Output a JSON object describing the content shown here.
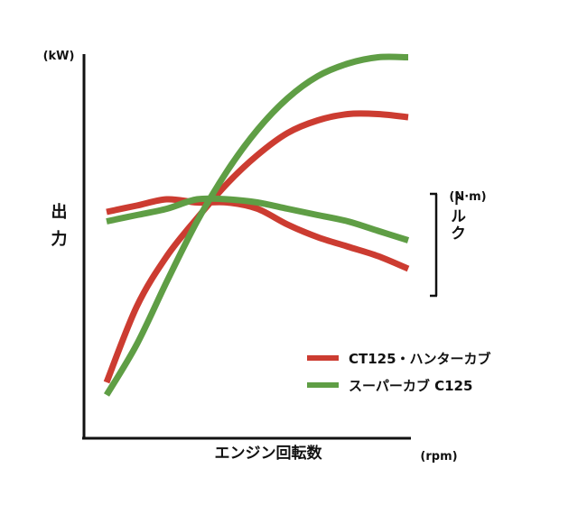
{
  "chart_data": {
    "type": "line",
    "title": "",
    "power_unit": "(kW)",
    "power_label": "出力",
    "torque_unit": "(N·m)",
    "torque_label": "トルク",
    "xlabel": "エンジン回転数",
    "xunit": "(rpm)",
    "grid": false,
    "legend_position": "bottom-right",
    "x": [
      0,
      10,
      20,
      30,
      40,
      50,
      60,
      70,
      80,
      90,
      100
    ],
    "series": [
      {
        "name": "CT125・ハンターカブ",
        "color": "#cc3c31",
        "power": [
          4,
          28,
          44,
          56,
          67,
          76,
          83,
          87,
          89,
          89,
          88
        ],
        "torque": [
          58,
          60,
          62,
          61,
          61,
          59,
          54,
          50,
          47,
          44,
          40
        ]
      },
      {
        "name": "スーパーカブ C125",
        "color": "#5f9e45",
        "power": [
          0,
          16,
          36,
          55,
          71,
          84,
          94,
          101,
          105,
          107,
          107
        ],
        "torque": [
          55,
          57,
          59,
          62,
          62,
          61,
          59,
          57,
          55,
          52,
          49
        ]
      }
    ]
  }
}
